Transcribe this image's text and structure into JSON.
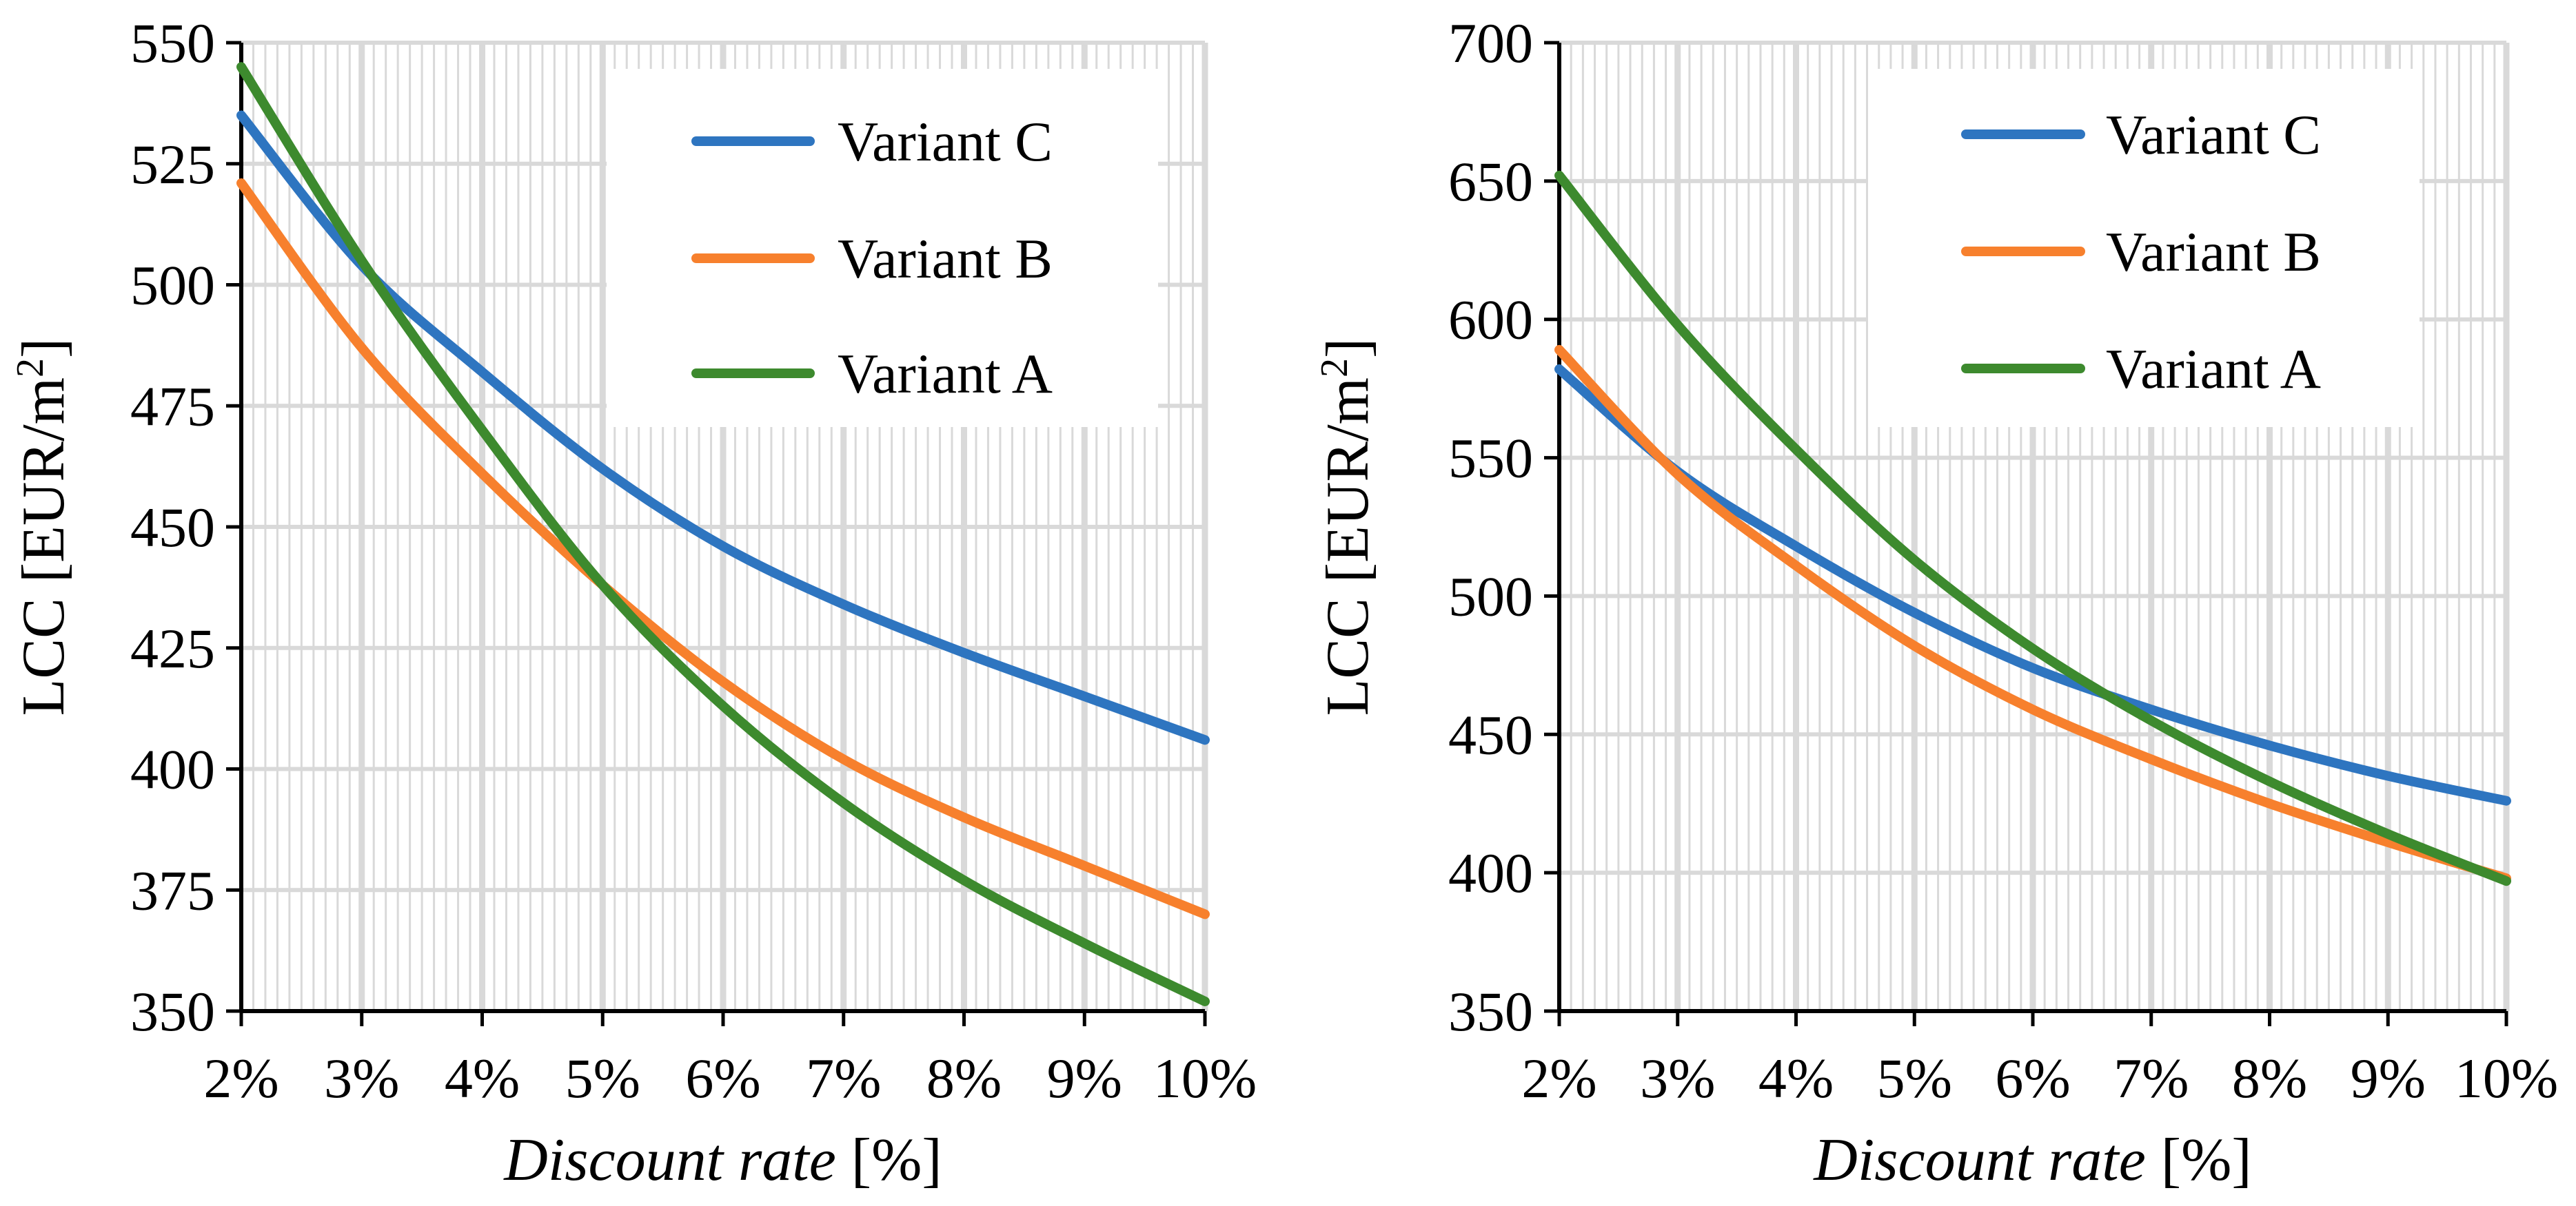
{
  "colors": {
    "variant_c": "#2E75C0",
    "variant_b": "#F7802D",
    "variant_a": "#3D8A2E",
    "grid": "#D9D9D9",
    "axis": "#000000"
  },
  "chart_data": [
    {
      "type": "line",
      "xlabel_italic": "Discount rate",
      "xlabel_unit": " [%]",
      "ylabel": "LCC [EUR/m",
      "ylabel_sup": "2",
      "ylabel_close": "]",
      "x": [
        2,
        3,
        4,
        5,
        6,
        7,
        8,
        9,
        10
      ],
      "x_tick_labels": [
        "2%",
        "3%",
        "4%",
        "5%",
        "6%",
        "7%",
        "8%",
        "9%",
        "10%"
      ],
      "xlim": [
        2,
        10
      ],
      "ylim": [
        350,
        550
      ],
      "y_ticks": [
        350,
        375,
        400,
        425,
        450,
        475,
        500,
        525,
        550
      ],
      "y_tick_labels": [
        "350",
        "375",
        "400",
        "425",
        "450",
        "475",
        "500",
        "525",
        "550"
      ],
      "grid": true,
      "legend_position": "top-right",
      "series": [
        {
          "name": "Variant C",
          "color_key": "variant_c",
          "values": [
            535,
            504,
            482,
            462,
            446,
            434,
            424,
            415,
            406
          ]
        },
        {
          "name": "Variant B",
          "color_key": "variant_b",
          "values": [
            521,
            487,
            461,
            438,
            418,
            402,
            390,
            380,
            370
          ]
        },
        {
          "name": "Variant A",
          "color_key": "variant_a",
          "values": [
            545,
            505,
            470,
            438,
            413,
            393,
            377,
            364,
            352
          ]
        }
      ]
    },
    {
      "type": "line",
      "xlabel_italic": "Discount rate",
      "xlabel_unit": " [%]",
      "ylabel": "LCC [EUR/m",
      "ylabel_sup": "2",
      "ylabel_close": "]",
      "x": [
        2,
        3,
        4,
        5,
        6,
        7,
        8,
        9,
        10
      ],
      "x_tick_labels": [
        "2%",
        "3%",
        "4%",
        "5%",
        "6%",
        "7%",
        "8%",
        "9%",
        "10%"
      ],
      "xlim": [
        2,
        10
      ],
      "ylim": [
        350,
        700
      ],
      "y_ticks": [
        350,
        400,
        450,
        500,
        550,
        600,
        650,
        700
      ],
      "y_tick_labels": [
        "350",
        "400",
        "450",
        "500",
        "550",
        "600",
        "650",
        "700"
      ],
      "grid": true,
      "legend_position": "top-right",
      "series": [
        {
          "name": "Variant C",
          "color_key": "variant_c",
          "values": [
            582,
            545,
            518,
            494,
            474,
            459,
            446,
            435,
            426
          ]
        },
        {
          "name": "Variant B",
          "color_key": "variant_b",
          "values": [
            589,
            544,
            511,
            482,
            459,
            441,
            425,
            411,
            398
          ]
        },
        {
          "name": "Variant A",
          "color_key": "variant_a",
          "values": [
            652,
            598,
            553,
            513,
            481,
            455,
            433,
            414,
            397
          ]
        }
      ]
    }
  ]
}
